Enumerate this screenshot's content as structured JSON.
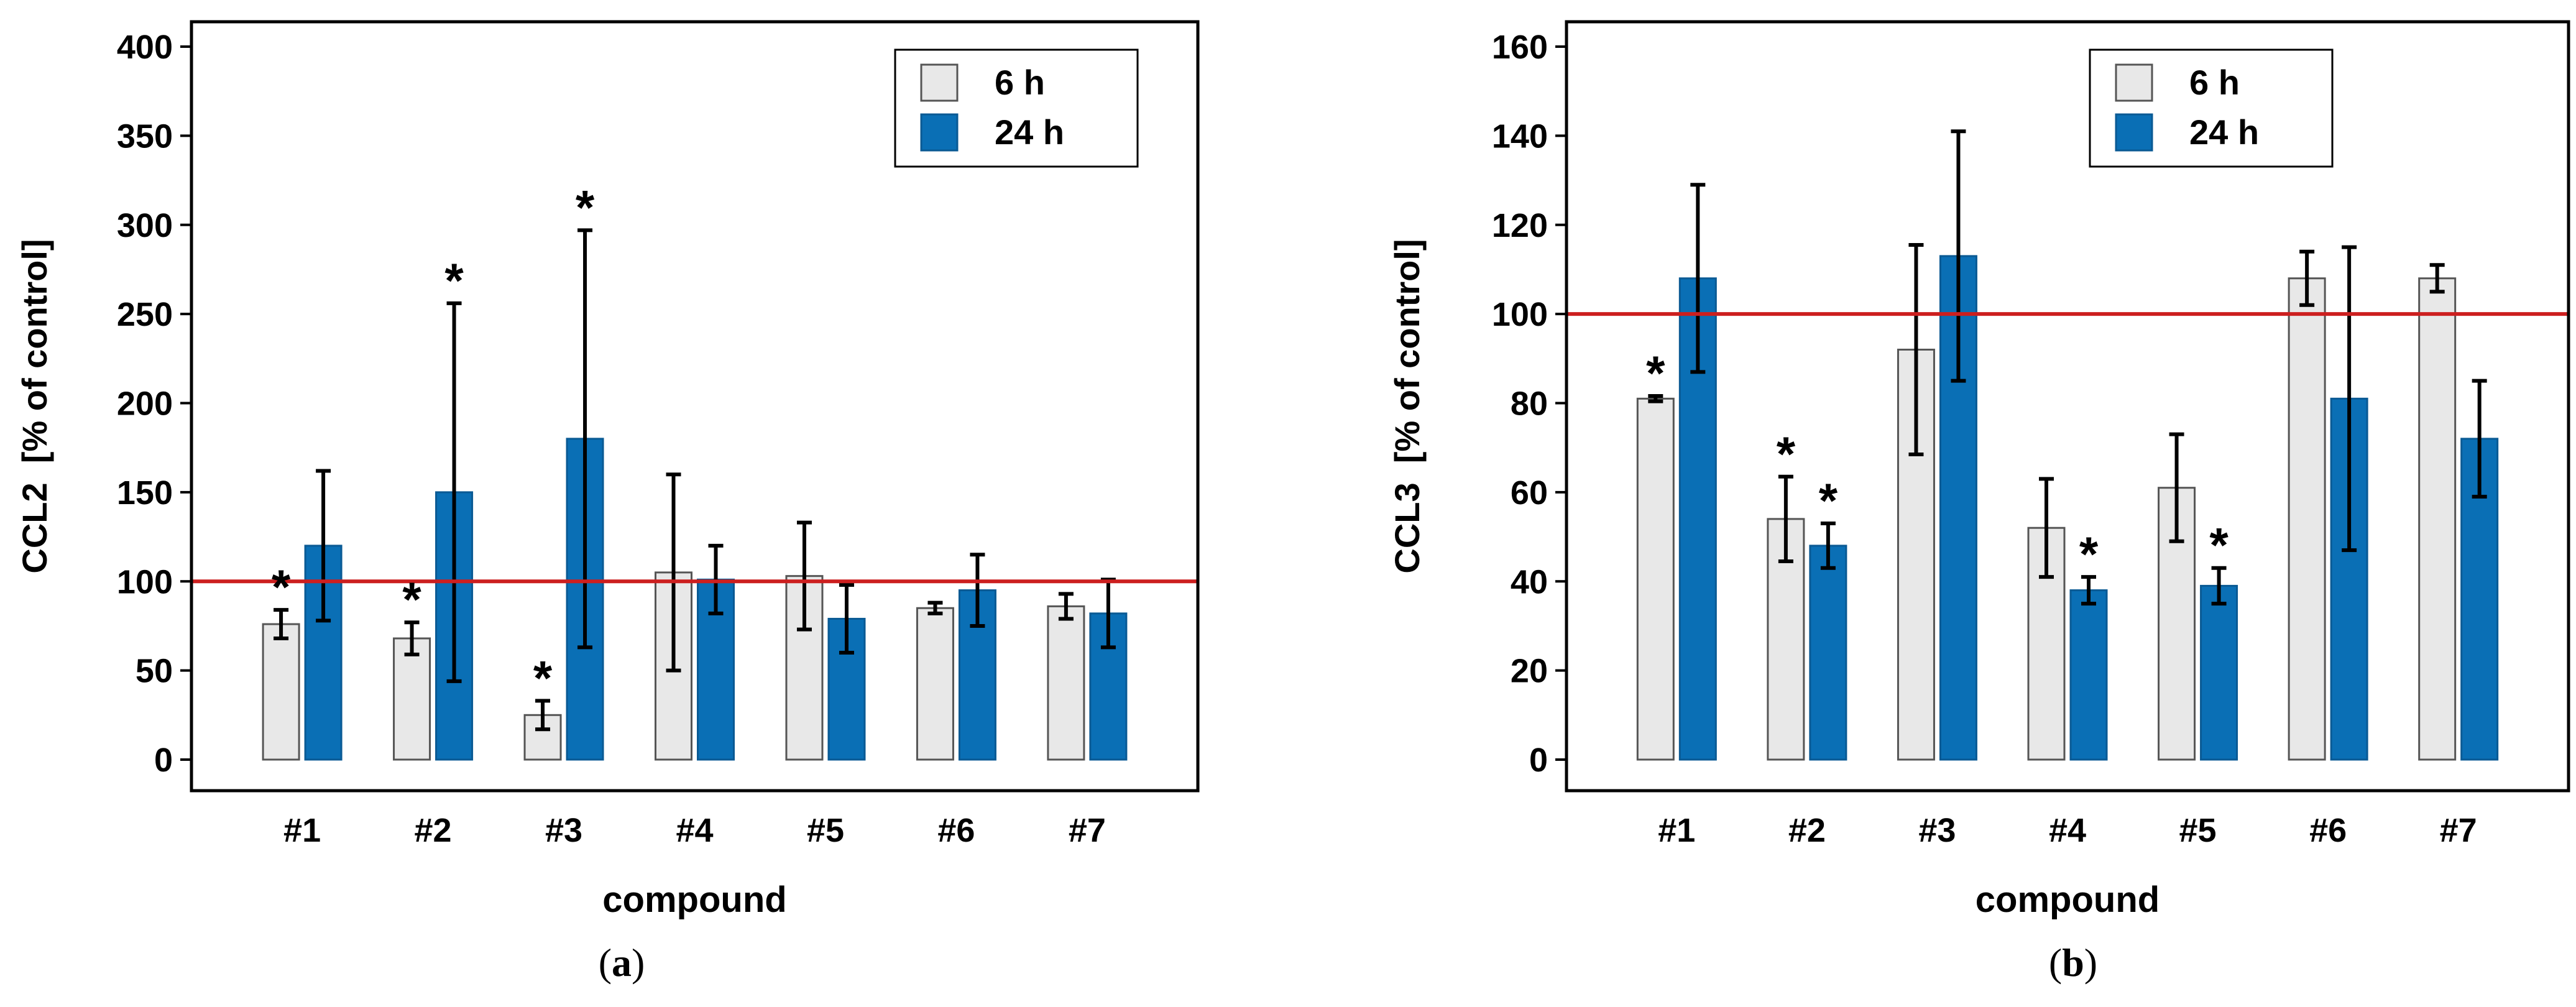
{
  "chart_data": [
    {
      "type": "bar",
      "panel_label": "(a)",
      "panel_letter": "a",
      "title": "",
      "xlabel": "compound",
      "ylabel": "CCL2  [% of control]",
      "categories": [
        "#1",
        "#2",
        "#3",
        "#4",
        "#5",
        "#6",
        "#7"
      ],
      "ylim": [
        0,
        400
      ],
      "yticks": [
        0,
        50,
        100,
        150,
        200,
        250,
        300,
        350,
        400
      ],
      "ytick_labels": [
        "0",
        "50",
        "100",
        "150",
        "200",
        "250",
        "300",
        "350",
        "400"
      ],
      "reference_line": {
        "value": 100,
        "color": "#cc1f1f"
      },
      "legend": {
        "position": "top-right"
      },
      "significance_marker": "*",
      "series": [
        {
          "name": "6 h",
          "color": "#e8e8e8",
          "values": [
            76,
            68,
            25,
            105,
            103,
            85,
            86
          ],
          "errors": [
            8,
            9,
            8,
            55,
            30,
            3,
            7
          ],
          "significant": [
            true,
            true,
            true,
            false,
            false,
            false,
            false
          ]
        },
        {
          "name": "24 h",
          "color": "#0a6fb5",
          "values": [
            120,
            150,
            180,
            101,
            79,
            95,
            82
          ],
          "errors": [
            42,
            106,
            117,
            19,
            19,
            20,
            19
          ],
          "significant": [
            false,
            true,
            true,
            false,
            false,
            false,
            false
          ]
        }
      ]
    },
    {
      "type": "bar",
      "panel_label": "(b)",
      "panel_letter": "b",
      "title": "",
      "xlabel": "compound",
      "ylabel": "CCL3  [% of control]",
      "categories": [
        "#1",
        "#2",
        "#3",
        "#4",
        "#5",
        "#6",
        "#7"
      ],
      "ylim": [
        0,
        160
      ],
      "yticks": [
        0,
        20,
        40,
        60,
        80,
        100,
        120,
        140,
        160
      ],
      "ytick_labels": [
        "0",
        "20",
        "40",
        "60",
        "80",
        "100",
        "120",
        "140",
        "160"
      ],
      "reference_line": {
        "value": 100,
        "color": "#cc1f1f"
      },
      "legend": {
        "position": "top-right"
      },
      "significance_marker": "*",
      "series": [
        {
          "name": "6 h",
          "color": "#e8e8e8",
          "values": [
            81,
            54,
            92,
            52,
            61,
            108,
            108
          ],
          "errors": [
            0.6,
            9.5,
            23.5,
            11,
            12,
            6,
            3
          ],
          "significant": [
            true,
            true,
            false,
            false,
            false,
            false,
            false
          ]
        },
        {
          "name": "24 h",
          "color": "#0a6fb5",
          "values": [
            108,
            48,
            113,
            38,
            39,
            81,
            72
          ],
          "errors": [
            21,
            5,
            28,
            3,
            4,
            34,
            13
          ],
          "significant": [
            false,
            true,
            false,
            true,
            true,
            false,
            false
          ]
        }
      ]
    }
  ]
}
